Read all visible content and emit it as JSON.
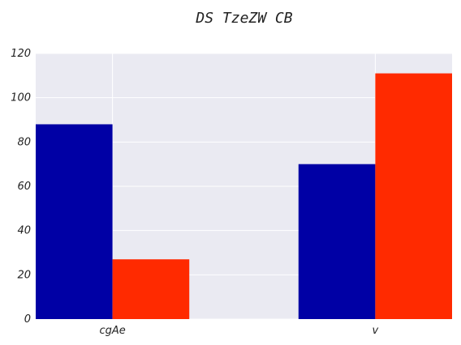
{
  "chart_data": {
    "type": "bar",
    "title": "DS TzeZW CB",
    "xlabel": "",
    "ylabel": "",
    "categories": [
      "cgAe",
      "v"
    ],
    "series": [
      {
        "color": "#0000a5",
        "values": [
          88,
          70
        ]
      },
      {
        "color": "#ff2a00",
        "values": [
          27,
          111
        ]
      }
    ],
    "ylim": [
      0,
      120
    ],
    "yticks": [
      0,
      20,
      40,
      60,
      80,
      100,
      120
    ],
    "grid": true,
    "legend": "none",
    "plot_background": "#eaeaf2",
    "grid_color": "#ffffff"
  }
}
